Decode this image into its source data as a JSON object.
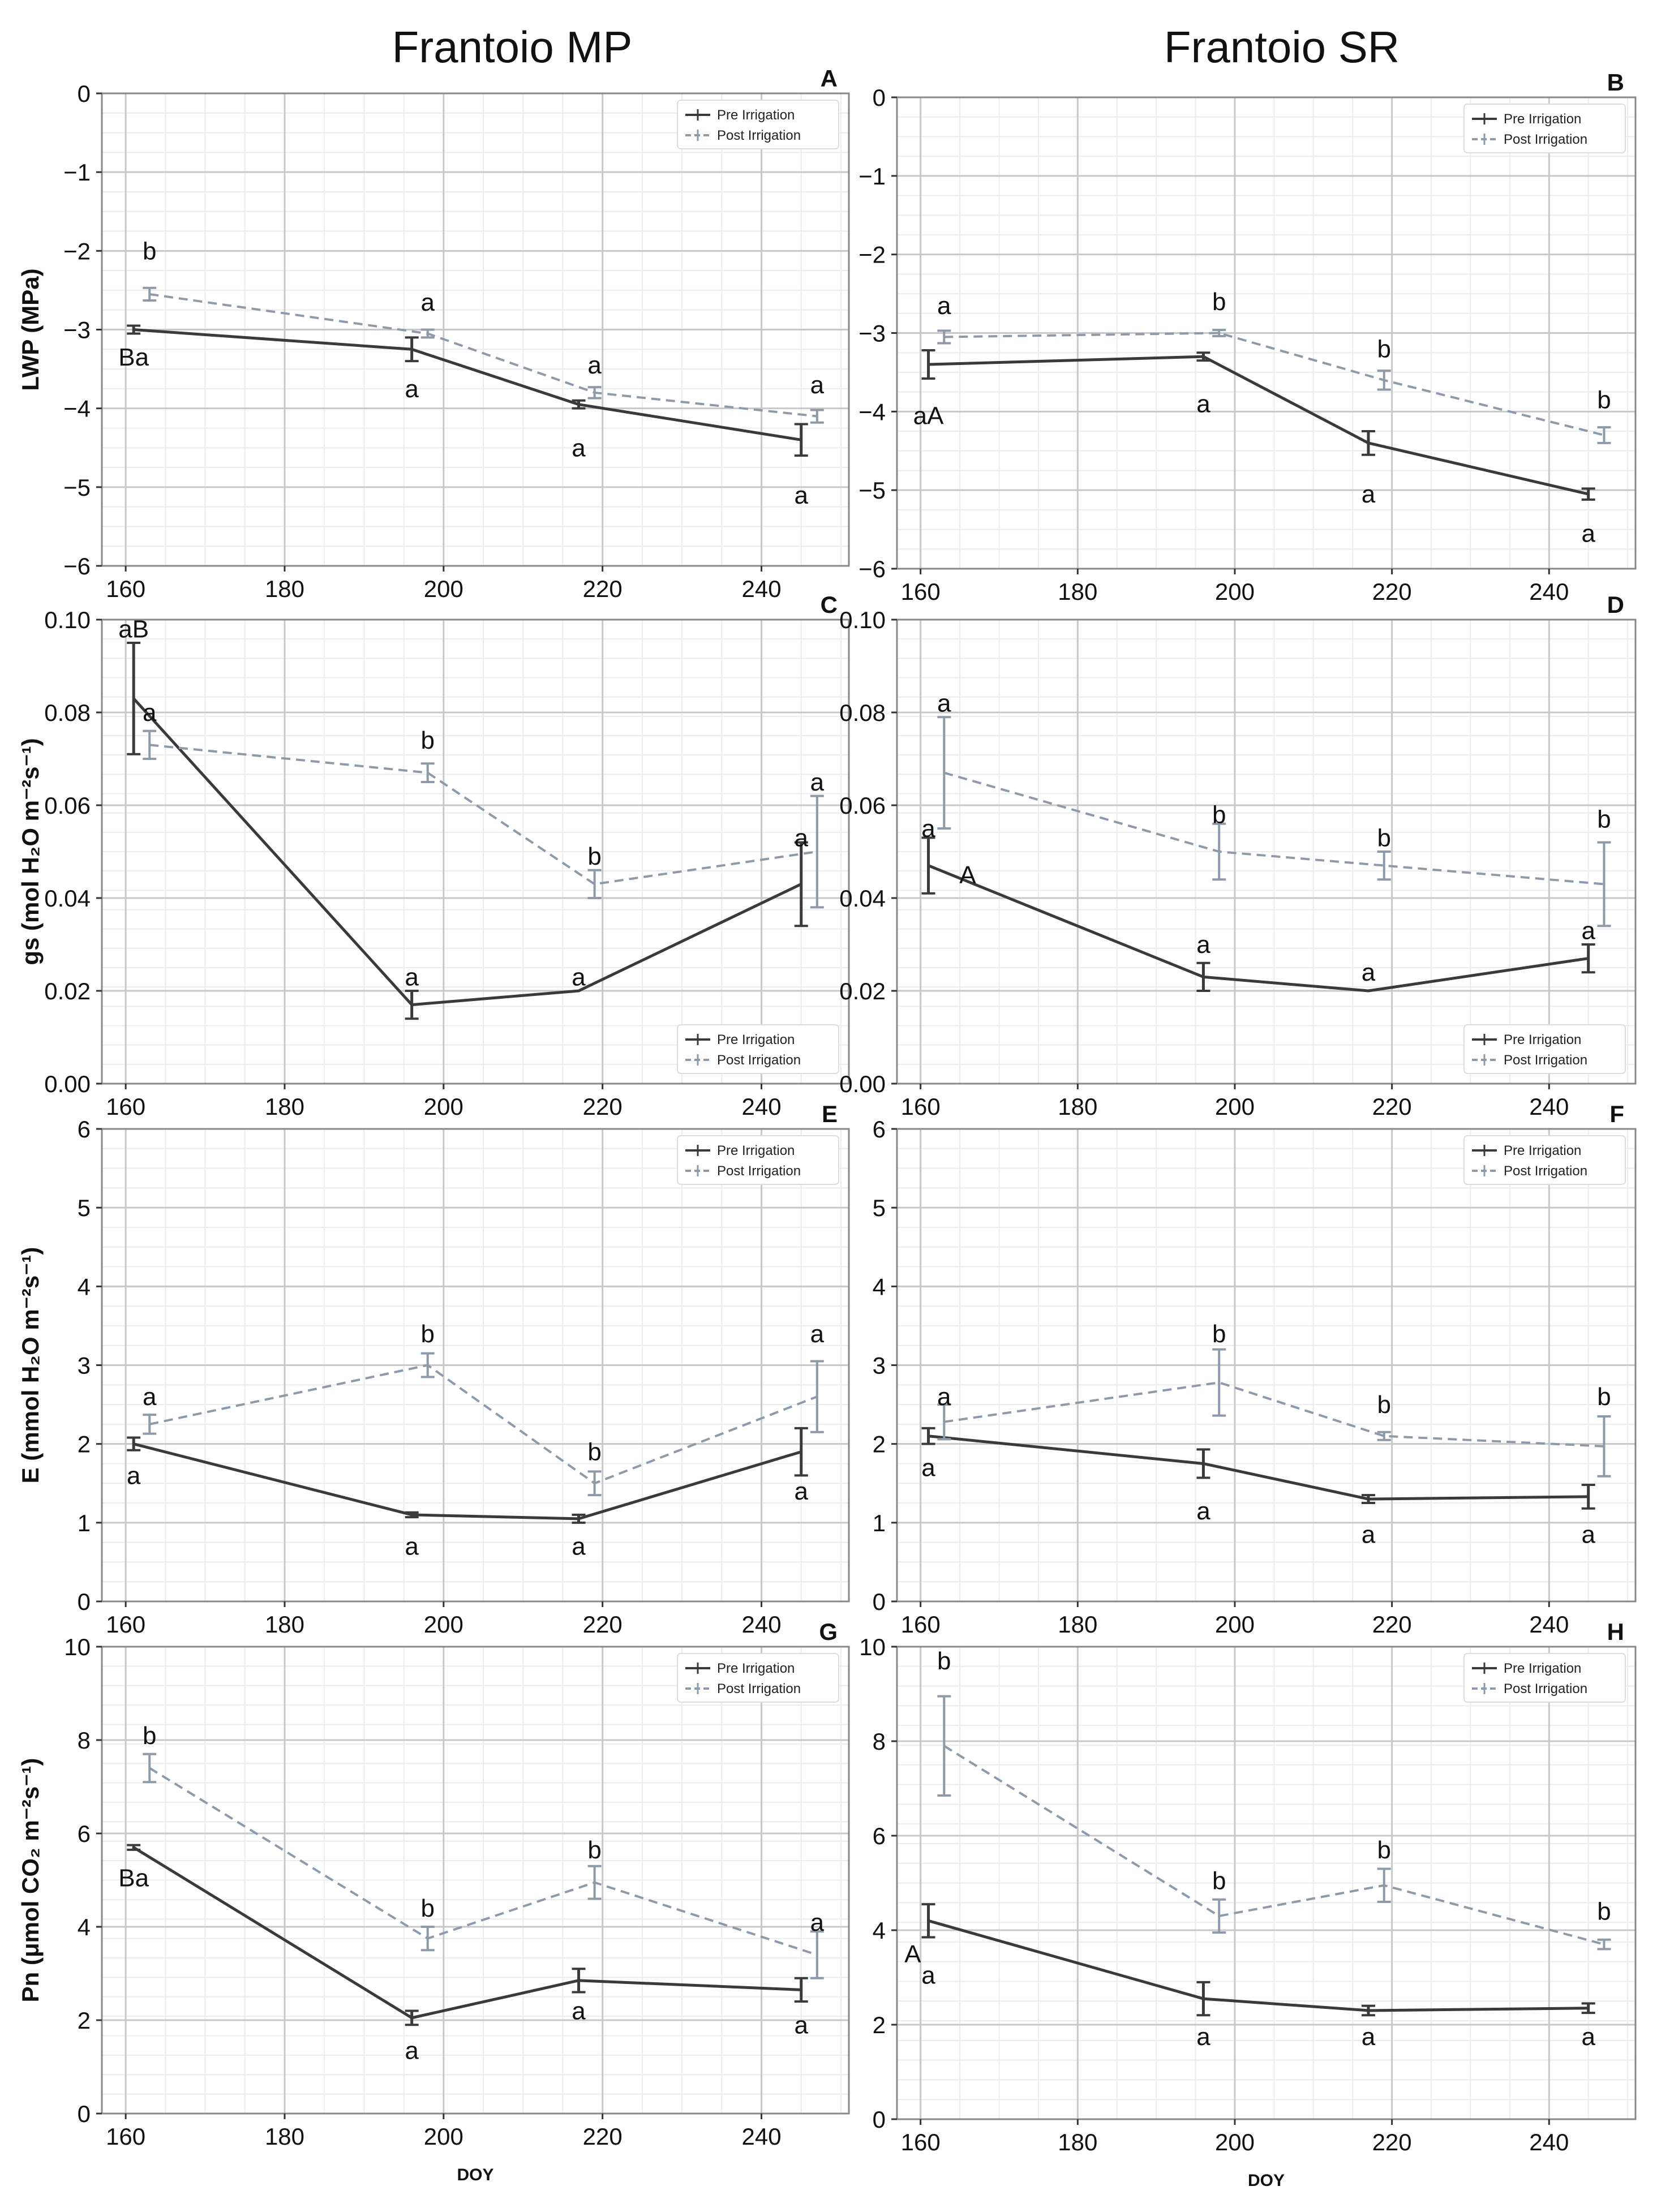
{
  "column_titles": [
    "Frantoio MP",
    "Frantoio SR"
  ],
  "colors": {
    "pre": "#3a3a3a",
    "post": "#8f9aa8",
    "grid": "#c8c8c8",
    "frame": "#888888"
  },
  "legend": {
    "pre": "Pre Irrigation",
    "post": "Post Irrigation"
  },
  "chart_data": [
    {
      "id": "A",
      "type": "line",
      "title": "A",
      "column": "Frantoio MP",
      "xlabel": "",
      "ylabel": "LWP (MPa)",
      "xlim": [
        157,
        251
      ],
      "ylim": [
        -6,
        0
      ],
      "xticks": [
        160,
        180,
        200,
        220,
        240
      ],
      "yticks": [
        0,
        -1,
        -2,
        -3,
        -4,
        -5,
        -6
      ],
      "ytick_labels": [
        "0",
        "−1",
        "−2",
        "−3",
        "−4",
        "−5",
        "−6"
      ],
      "legend_position": "top-right",
      "series": [
        {
          "name": "Pre Irrigation",
          "x": [
            161,
            196,
            217,
            245
          ],
          "y": [
            -3.0,
            -3.25,
            -3.95,
            -4.4
          ],
          "err": [
            0.05,
            0.15,
            0.05,
            0.2
          ]
        },
        {
          "name": "Post Irrigation",
          "x": [
            163,
            198,
            219,
            247
          ],
          "y": [
            -2.55,
            -3.05,
            -3.8,
            -4.1
          ],
          "err": [
            0.08,
            0.05,
            0.07,
            0.08
          ]
        }
      ],
      "annotations": [
        {
          "text": "b",
          "x": 163,
          "y": -2.0
        },
        {
          "text": "Ba",
          "x": 161,
          "y": -3.35
        },
        {
          "text": "a",
          "x": 198,
          "y": -2.65
        },
        {
          "text": "a",
          "x": 196,
          "y": -3.75
        },
        {
          "text": "a",
          "x": 219,
          "y": -3.45
        },
        {
          "text": "a",
          "x": 217,
          "y": -4.5
        },
        {
          "text": "a",
          "x": 247,
          "y": -3.7
        },
        {
          "text": "a",
          "x": 245,
          "y": -5.1
        }
      ]
    },
    {
      "id": "B",
      "type": "line",
      "title": "B",
      "column": "Frantoio SR",
      "xlabel": "",
      "ylabel": "",
      "xlim": [
        157,
        251
      ],
      "ylim": [
        -6,
        0
      ],
      "xticks": [
        160,
        180,
        200,
        220,
        240
      ],
      "yticks": [
        0,
        -1,
        -2,
        -3,
        -4,
        -5,
        -6
      ],
      "ytick_labels": [
        "0",
        "−1",
        "−2",
        "−3",
        "−4",
        "−5",
        "−6"
      ],
      "legend_position": "top-right",
      "series": [
        {
          "name": "Pre Irrigation",
          "x": [
            161,
            196,
            217,
            245
          ],
          "y": [
            -3.4,
            -3.3,
            -4.4,
            -5.05
          ],
          "err": [
            0.18,
            0.05,
            0.15,
            0.07
          ]
        },
        {
          "name": "Post Irrigation",
          "x": [
            163,
            198,
            219,
            247
          ],
          "y": [
            -3.05,
            -3.0,
            -3.6,
            -4.3
          ],
          "err": [
            0.08,
            0.04,
            0.12,
            0.1
          ]
        }
      ],
      "annotations": [
        {
          "text": "a",
          "x": 163,
          "y": -2.65
        },
        {
          "text": "aA",
          "x": 161,
          "y": -4.05
        },
        {
          "text": "b",
          "x": 198,
          "y": -2.6
        },
        {
          "text": "a",
          "x": 196,
          "y": -3.9
        },
        {
          "text": "b",
          "x": 219,
          "y": -3.2
        },
        {
          "text": "a",
          "x": 217,
          "y": -5.05
        },
        {
          "text": "b",
          "x": 247,
          "y": -3.85
        },
        {
          "text": "a",
          "x": 245,
          "y": -5.55
        }
      ]
    },
    {
      "id": "C",
      "type": "line",
      "title": "C",
      "column": "Frantoio MP",
      "xlabel": "",
      "ylabel": "gs (mol H₂O m⁻²s⁻¹)",
      "xlim": [
        157,
        251
      ],
      "ylim": [
        0,
        0.1
      ],
      "xticks": [
        160,
        180,
        200,
        220,
        240
      ],
      "yticks": [
        0,
        0.02,
        0.04,
        0.06,
        0.08,
        0.1
      ],
      "ytick_labels": [
        "0.00",
        "0.02",
        "0.04",
        "0.06",
        "0.08",
        "0.10"
      ],
      "legend_position": "bottom-right",
      "series": [
        {
          "name": "Pre Irrigation",
          "x": [
            161,
            196,
            217,
            245
          ],
          "y": [
            0.083,
            0.017,
            0.02,
            0.043
          ],
          "err": [
            0.012,
            0.003,
            0.0,
            0.009
          ]
        },
        {
          "name": "Post Irrigation",
          "x": [
            163,
            198,
            219,
            247
          ],
          "y": [
            0.073,
            0.067,
            0.043,
            0.05
          ],
          "err": [
            0.003,
            0.002,
            0.003,
            0.012
          ]
        }
      ],
      "annotations": [
        {
          "text": "aB",
          "x": 161,
          "y": 0.098
        },
        {
          "text": "a",
          "x": 163,
          "y": 0.08
        },
        {
          "text": "b",
          "x": 198,
          "y": 0.074
        },
        {
          "text": "a",
          "x": 196,
          "y": 0.023
        },
        {
          "text": "b",
          "x": 219,
          "y": 0.049
        },
        {
          "text": "a",
          "x": 217,
          "y": 0.023
        },
        {
          "text": "a",
          "x": 247,
          "y": 0.065
        },
        {
          "text": "a",
          "x": 245,
          "y": 0.053
        }
      ]
    },
    {
      "id": "D",
      "type": "line",
      "title": "D",
      "column": "Frantoio SR",
      "xlabel": "",
      "ylabel": "",
      "xlim": [
        157,
        251
      ],
      "ylim": [
        0,
        0.1
      ],
      "xticks": [
        160,
        180,
        200,
        220,
        240
      ],
      "yticks": [
        0,
        0.02,
        0.04,
        0.06,
        0.08,
        0.1
      ],
      "ytick_labels": [
        "0.00",
        "0.02",
        "0.04",
        "0.06",
        "0.08",
        "0.10"
      ],
      "legend_position": "bottom-right",
      "series": [
        {
          "name": "Pre Irrigation",
          "x": [
            161,
            196,
            217,
            245
          ],
          "y": [
            0.047,
            0.023,
            0.02,
            0.027
          ],
          "err": [
            0.006,
            0.003,
            0.0,
            0.003
          ]
        },
        {
          "name": "Post Irrigation",
          "x": [
            163,
            198,
            219,
            247
          ],
          "y": [
            0.067,
            0.05,
            0.047,
            0.043
          ],
          "err": [
            0.012,
            0.006,
            0.003,
            0.009
          ]
        }
      ],
      "annotations": [
        {
          "text": "a",
          "x": 163,
          "y": 0.082
        },
        {
          "text": "a",
          "x": 161,
          "y": 0.055
        },
        {
          "text": "A",
          "x": 166,
          "y": 0.045
        },
        {
          "text": "b",
          "x": 198,
          "y": 0.058
        },
        {
          "text": "a",
          "x": 196,
          "y": 0.03
        },
        {
          "text": "b",
          "x": 219,
          "y": 0.053
        },
        {
          "text": "a",
          "x": 217,
          "y": 0.024
        },
        {
          "text": "b",
          "x": 247,
          "y": 0.057
        },
        {
          "text": "a",
          "x": 245,
          "y": 0.033
        }
      ]
    },
    {
      "id": "E",
      "type": "line",
      "title": "E",
      "column": "Frantoio MP",
      "xlabel": "",
      "ylabel": "E (mmol H₂O m⁻²s⁻¹)",
      "xlim": [
        157,
        251
      ],
      "ylim": [
        0,
        6
      ],
      "xticks": [
        160,
        180,
        200,
        220,
        240
      ],
      "yticks": [
        0,
        1,
        2,
        3,
        4,
        5,
        6
      ],
      "ytick_labels": [
        "0",
        "1",
        "2",
        "3",
        "4",
        "5",
        "6"
      ],
      "legend_position": "top-right",
      "series": [
        {
          "name": "Pre Irrigation",
          "x": [
            161,
            196,
            217,
            245
          ],
          "y": [
            2.0,
            1.1,
            1.05,
            1.9
          ],
          "err": [
            0.08,
            0.03,
            0.05,
            0.3
          ]
        },
        {
          "name": "Post Irrigation",
          "x": [
            163,
            198,
            219,
            247
          ],
          "y": [
            2.25,
            3.0,
            1.5,
            2.6
          ],
          "err": [
            0.12,
            0.15,
            0.15,
            0.45
          ]
        }
      ],
      "annotations": [
        {
          "text": "a",
          "x": 163,
          "y": 2.6
        },
        {
          "text": "a",
          "x": 161,
          "y": 1.6
        },
        {
          "text": "b",
          "x": 198,
          "y": 3.4
        },
        {
          "text": "a",
          "x": 196,
          "y": 0.7
        },
        {
          "text": "b",
          "x": 219,
          "y": 1.9
        },
        {
          "text": "a",
          "x": 217,
          "y": 0.7
        },
        {
          "text": "a",
          "x": 247,
          "y": 3.4
        },
        {
          "text": "a",
          "x": 245,
          "y": 1.4
        }
      ]
    },
    {
      "id": "F",
      "type": "line",
      "title": "F",
      "column": "Frantoio SR",
      "xlabel": "",
      "ylabel": "",
      "xlim": [
        157,
        251
      ],
      "ylim": [
        0,
        6
      ],
      "xticks": [
        160,
        180,
        200,
        220,
        240
      ],
      "yticks": [
        0,
        1,
        2,
        3,
        4,
        5,
        6
      ],
      "ytick_labels": [
        "0",
        "1",
        "2",
        "3",
        "4",
        "5",
        "6"
      ],
      "legend_position": "top-right",
      "series": [
        {
          "name": "Pre Irrigation",
          "x": [
            161,
            196,
            217,
            245
          ],
          "y": [
            2.1,
            1.75,
            1.3,
            1.33
          ],
          "err": [
            0.1,
            0.18,
            0.05,
            0.15
          ]
        },
        {
          "name": "Post Irrigation",
          "x": [
            163,
            198,
            219,
            247
          ],
          "y": [
            2.28,
            2.78,
            2.1,
            1.97
          ],
          "err": [
            0.22,
            0.42,
            0.05,
            0.38
          ]
        }
      ],
      "annotations": [
        {
          "text": "a",
          "x": 163,
          "y": 2.6
        },
        {
          "text": "a",
          "x": 161,
          "y": 1.7
        },
        {
          "text": "b",
          "x": 198,
          "y": 3.4
        },
        {
          "text": "a",
          "x": 196,
          "y": 1.15
        },
        {
          "text": "b",
          "x": 219,
          "y": 2.5
        },
        {
          "text": "a",
          "x": 217,
          "y": 0.85
        },
        {
          "text": "b",
          "x": 247,
          "y": 2.6
        },
        {
          "text": "a",
          "x": 245,
          "y": 0.85
        }
      ]
    },
    {
      "id": "G",
      "type": "line",
      "title": "G",
      "column": "Frantoio MP",
      "xlabel": "DOY",
      "ylabel": "Pn (μmol CO₂ m⁻²s⁻¹)",
      "xlim": [
        157,
        251
      ],
      "ylim": [
        0,
        10
      ],
      "xticks": [
        160,
        180,
        200,
        220,
        240
      ],
      "yticks": [
        0,
        2,
        4,
        6,
        8,
        10
      ],
      "ytick_labels": [
        "0",
        "2",
        "4",
        "6",
        "8",
        "10"
      ],
      "legend_position": "top-right",
      "series": [
        {
          "name": "Pre Irrigation",
          "x": [
            161,
            196,
            217,
            245
          ],
          "y": [
            5.7,
            2.05,
            2.85,
            2.65
          ],
          "err": [
            0.05,
            0.15,
            0.25,
            0.25
          ]
        },
        {
          "name": "Post Irrigation",
          "x": [
            163,
            198,
            219,
            247
          ],
          "y": [
            7.4,
            3.75,
            4.95,
            3.4
          ],
          "err": [
            0.3,
            0.25,
            0.35,
            0.5
          ]
        }
      ],
      "annotations": [
        {
          "text": "b",
          "x": 163,
          "y": 8.1
        },
        {
          "text": "Ba",
          "x": 161,
          "y": 5.05
        },
        {
          "text": "b",
          "x": 198,
          "y": 4.4
        },
        {
          "text": "a",
          "x": 196,
          "y": 1.35
        },
        {
          "text": "b",
          "x": 219,
          "y": 5.65
        },
        {
          "text": "a",
          "x": 217,
          "y": 2.2
        },
        {
          "text": "a",
          "x": 247,
          "y": 4.1
        },
        {
          "text": "a",
          "x": 245,
          "y": 1.9
        }
      ]
    },
    {
      "id": "H",
      "type": "line",
      "title": "H",
      "column": "Frantoio SR",
      "xlabel": "DOY",
      "ylabel": "",
      "xlim": [
        157,
        251
      ],
      "ylim": [
        0,
        10
      ],
      "xticks": [
        160,
        180,
        200,
        220,
        240
      ],
      "yticks": [
        0,
        2,
        4,
        6,
        8,
        10
      ],
      "ytick_labels": [
        "0",
        "2",
        "4",
        "6",
        "8",
        "10"
      ],
      "legend_position": "top-right",
      "series": [
        {
          "name": "Pre Irrigation",
          "x": [
            161,
            196,
            217,
            245
          ],
          "y": [
            4.2,
            2.55,
            2.3,
            2.35
          ],
          "err": [
            0.35,
            0.35,
            0.1,
            0.1
          ]
        },
        {
          "name": "Post Irrigation",
          "x": [
            163,
            198,
            219,
            247
          ],
          "y": [
            7.9,
            4.3,
            4.95,
            3.7
          ],
          "err": [
            1.05,
            0.35,
            0.35,
            0.1
          ]
        }
      ],
      "annotations": [
        {
          "text": "b",
          "x": 163,
          "y": 9.7
        },
        {
          "text": "A",
          "x": 159,
          "y": 3.5
        },
        {
          "text": "a",
          "x": 161,
          "y": 3.05
        },
        {
          "text": "b",
          "x": 198,
          "y": 5.05
        },
        {
          "text": "a",
          "x": 196,
          "y": 1.75
        },
        {
          "text": "b",
          "x": 219,
          "y": 5.7
        },
        {
          "text": "a",
          "x": 217,
          "y": 1.75
        },
        {
          "text": "b",
          "x": 247,
          "y": 4.4
        },
        {
          "text": "a",
          "x": 245,
          "y": 1.75
        }
      ]
    }
  ]
}
